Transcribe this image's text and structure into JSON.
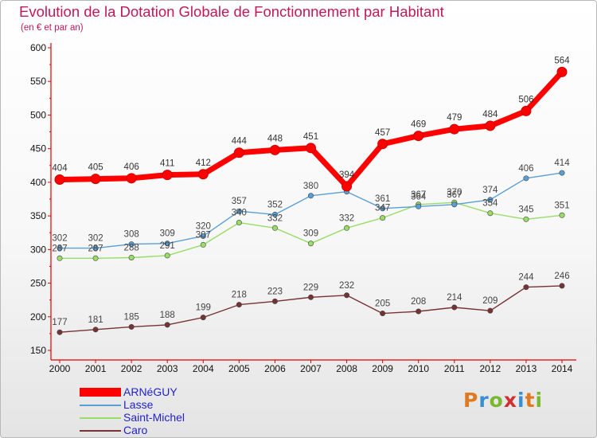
{
  "header": {
    "title": "Evolution de la Dotation Globale de Fonctionnement par Habitant",
    "subtitle": "(en € et par an)"
  },
  "logo": {
    "text": "Proxiti",
    "colors": [
      "#e07a20",
      "#3a8fd0",
      "#7ab830",
      "#d03030",
      "#3a8fd0",
      "#e07a20",
      "#7ab830"
    ]
  },
  "chart_data": {
    "type": "line",
    "title": "Evolution de la Dotation Globale de Fonctionnement par Habitant",
    "subtitle": "(en € et par an)",
    "xlabel": "",
    "ylabel": "",
    "x": [
      "2000",
      "2001",
      "2002",
      "2003",
      "2004",
      "2005",
      "2006",
      "2007",
      "2008",
      "2009",
      "2010",
      "2011",
      "2012",
      "2013",
      "2014"
    ],
    "y_ticks": [
      "150",
      "200",
      "250",
      "300",
      "350",
      "400",
      "450",
      "500",
      "550",
      "600"
    ],
    "ylim": [
      150,
      600
    ],
    "grid": false,
    "legend_position": "bottom-left",
    "series": [
      {
        "name": "ARNéGUY",
        "color": "#ff0000",
        "values": [
          404,
          405,
          406,
          411,
          412,
          444,
          448,
          451,
          394,
          457,
          469,
          479,
          484,
          506,
          564
        ],
        "labels": [
          "404",
          "405",
          "406",
          "411",
          "412",
          "444",
          "448",
          "451",
          "394",
          "457",
          "469",
          "479",
          "484",
          "506",
          "564"
        ]
      },
      {
        "name": "Lasse",
        "color": "#5a9fd4",
        "values": [
          302,
          302,
          308,
          309,
          320,
          357,
          352,
          380,
          386,
          361,
          364,
          367,
          374,
          406,
          414
        ],
        "labels": [
          "302",
          "302",
          "308",
          "309",
          "320",
          "357",
          "352",
          "380",
          "",
          "361",
          "364",
          "367",
          "374",
          "406",
          "414"
        ]
      },
      {
        "name": "Saint-Michel",
        "color": "#99dd66",
        "values": [
          287,
          287,
          288,
          291,
          307,
          340,
          332,
          309,
          332,
          347,
          367,
          370,
          354,
          345,
          351
        ],
        "labels": [
          "287",
          "287",
          "288",
          "291",
          "307",
          "340",
          "332",
          "309",
          "332",
          "347",
          "367",
          "370",
          "354",
          "345",
          "351"
        ]
      },
      {
        "name": "Caro",
        "color": "#773333",
        "values": [
          177,
          181,
          185,
          188,
          199,
          218,
          223,
          229,
          232,
          205,
          208,
          214,
          209,
          244,
          246
        ],
        "labels": [
          "177",
          "181",
          "185",
          "188",
          "199",
          "218",
          "223",
          "229",
          "232",
          "205",
          "208",
          "214",
          "209",
          "244",
          "246"
        ]
      }
    ]
  }
}
